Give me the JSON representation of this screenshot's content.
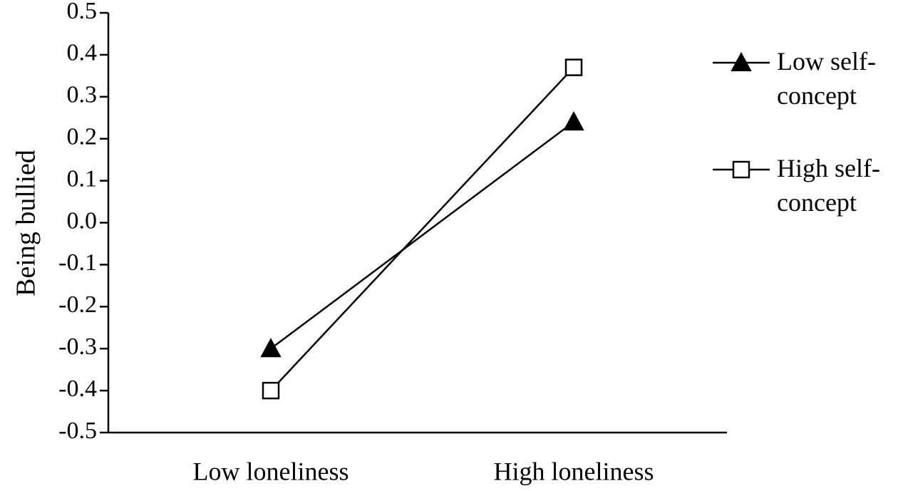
{
  "chart_data": {
    "type": "line",
    "y_label": "Being bullied",
    "categories": [
      "Low loneliness",
      "High loneliness"
    ],
    "series": [
      {
        "name": "Low self-concept",
        "color": "#000000",
        "marker": "triangle",
        "values": [
          -0.3,
          0.24
        ]
      },
      {
        "name": "High self-concept",
        "color": "#000000",
        "marker": "square",
        "values": [
          -0.4,
          0.37
        ]
      }
    ],
    "ylim": [
      -0.5,
      0.5
    ],
    "yticks": [
      -0.5,
      -0.4,
      -0.3,
      -0.2,
      -0.1,
      {
        "value": 0,
        "label": "0.0"
      },
      0.1,
      0.2,
      0.3,
      0.4,
      0.5
    ]
  }
}
